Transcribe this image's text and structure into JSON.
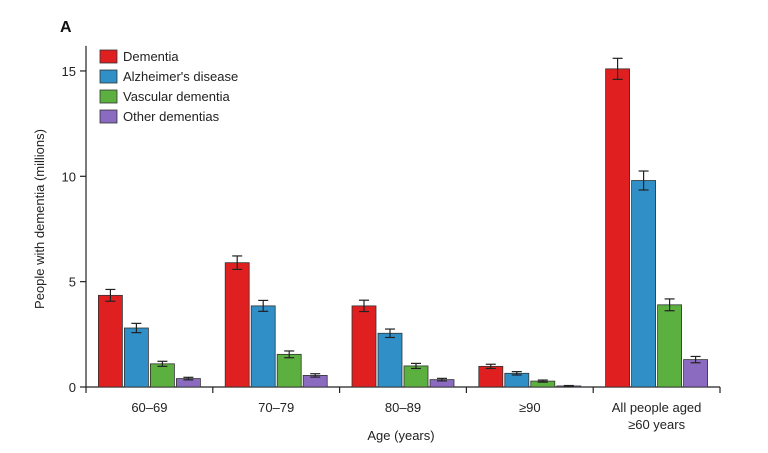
{
  "panel_label": "A",
  "chart_data": {
    "type": "bar",
    "title": "",
    "xlabel": "Age (years)",
    "ylabel": "People with dementia (millions)",
    "ylim": [
      0,
      16
    ],
    "yticks": [
      0,
      5,
      10,
      15
    ],
    "categories": [
      [
        "60–69"
      ],
      [
        "70–79"
      ],
      [
        "80–89"
      ],
      [
        "≥90"
      ],
      [
        "All people aged",
        "≥60 years"
      ]
    ],
    "series": [
      {
        "name": "Dementia",
        "color": "#e02020",
        "values": [
          4.35,
          5.9,
          3.85,
          0.98,
          15.1
        ],
        "errors": [
          0.28,
          0.32,
          0.27,
          0.1,
          0.5
        ]
      },
      {
        "name": "Alzheimer's disease",
        "color": "#2f8fc6",
        "values": [
          2.8,
          3.85,
          2.55,
          0.65,
          9.8
        ],
        "errors": [
          0.22,
          0.26,
          0.2,
          0.08,
          0.45
        ]
      },
      {
        "name": "Vascular dementia",
        "color": "#5cb040",
        "values": [
          1.1,
          1.55,
          1.0,
          0.28,
          3.9
        ],
        "errors": [
          0.12,
          0.16,
          0.12,
          0.05,
          0.28
        ]
      },
      {
        "name": "Other dementias",
        "color": "#8a6bbf",
        "values": [
          0.4,
          0.55,
          0.35,
          0.05,
          1.3
        ],
        "errors": [
          0.06,
          0.08,
          0.06,
          0.02,
          0.15
        ]
      }
    ],
    "legend_position": "top-left",
    "grid": false,
    "error_bars": true
  }
}
